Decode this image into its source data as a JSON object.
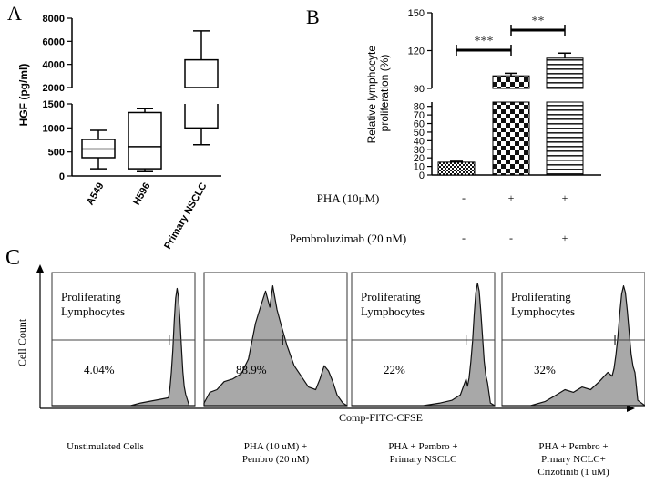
{
  "chart_data": [
    {
      "panel": "A",
      "type": "box",
      "ylabel": "HGF (pg/ml)",
      "categories": [
        "A549",
        "H596",
        "Primary NSCLC"
      ],
      "y_axis_break": {
        "lower_range": [
          0,
          1500
        ],
        "upper_range": [
          2000,
          8000
        ]
      },
      "lower_ticks": [
        0,
        500,
        1000,
        1500
      ],
      "upper_ticks": [
        2000,
        4000,
        6000,
        8000
      ],
      "boxes": [
        {
          "label": "A549",
          "min": 150,
          "q1": 380,
          "median": 560,
          "q3": 760,
          "max": 950
        },
        {
          "label": "H596",
          "min": 90,
          "q1": 150,
          "median": 610,
          "q3": 1320,
          "max": 1400
        },
        {
          "label": "Primary NSCLC",
          "min": 650,
          "q1": 1000,
          "median": 2000,
          "q3": 4400,
          "max": 6900
        }
      ]
    },
    {
      "panel": "B",
      "type": "bar",
      "ylabel": "Relative lymphocyte proliferation (%)",
      "y_axis_break": {
        "lower_range": [
          0,
          85
        ],
        "upper_range": [
          90,
          150
        ]
      },
      "lower_ticks": [
        0,
        10,
        20,
        30,
        40,
        50,
        60,
        70,
        80
      ],
      "upper_ticks": [
        90,
        120,
        150
      ],
      "categories": [
        "PHA - / Pembro -",
        "PHA + / Pembro -",
        "PHA + / Pembro +"
      ],
      "values": [
        15,
        100,
        114
      ],
      "errors": [
        1,
        2,
        4
      ],
      "patterns": [
        "fine-dots",
        "checker",
        "hlines"
      ],
      "significance": [
        {
          "from": 0,
          "to": 1,
          "label": "***"
        },
        {
          "from": 1,
          "to": 2,
          "label": "**"
        }
      ],
      "conditions": [
        {
          "label": "PHA (10μM)",
          "values": [
            "-",
            "+",
            "+"
          ]
        },
        {
          "label": "Pembroluzimab (20 nM)",
          "values": [
            "-",
            "-",
            "+"
          ]
        }
      ]
    },
    {
      "panel": "C",
      "type": "histogram",
      "ylabel": "Cell Count",
      "xlabel": "Comp-FITC-CFSE",
      "gate_label_line1": "Proliferating",
      "gate_label_line2": "Lymphocytes",
      "panels": [
        {
          "percent": "4.04%",
          "caption": [
            "Unstimulated Cells"
          ],
          "show_gate_label": true
        },
        {
          "percent": "88.9%",
          "caption": [
            "PHA (10 uM) +",
            "Pembro (20 nM)"
          ],
          "show_gate_label": false
        },
        {
          "percent": "22%",
          "caption": [
            "PHA + Pembro +",
            "Primary NSCLC"
          ],
          "show_gate_label": true
        },
        {
          "percent": "32%",
          "caption": [
            "PHA + Pembro +",
            "Prmary NCLC+",
            "Crizotinib (1 uM)"
          ],
          "show_gate_label": true
        }
      ]
    }
  ],
  "panel_letters": {
    "a": "A",
    "b": "B",
    "c": "C"
  }
}
